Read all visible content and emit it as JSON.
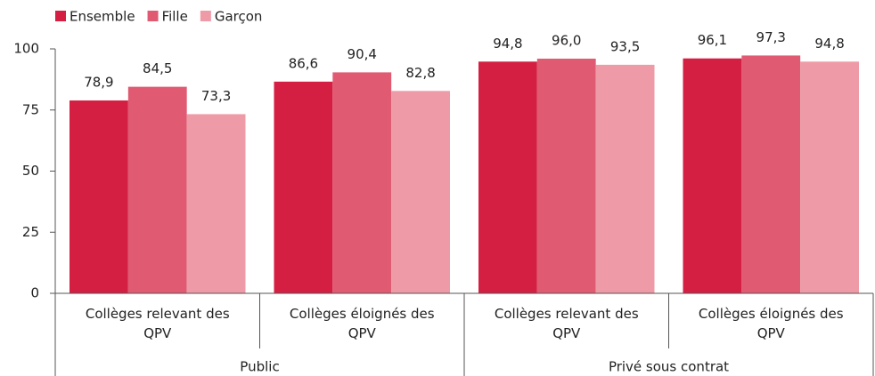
{
  "chart_data": {
    "type": "bar",
    "categories": [
      "Collèges relevant des QPV",
      "Collèges éloignés des QPV",
      "Collèges relevant des QPV",
      "Collèges éloignés des QPV"
    ],
    "group_labels": [
      "Public",
      "Privé sous contrat"
    ],
    "series": [
      {
        "name": "Ensemble",
        "color": "#d41f42",
        "values": [
          78.9,
          86.6,
          94.8,
          96.1
        ],
        "value_labels": [
          "78,9",
          "86,6",
          "94,8",
          "96,1"
        ]
      },
      {
        "name": "Fille",
        "color": "#e05a72",
        "values": [
          84.5,
          90.4,
          96.0,
          97.3
        ],
        "value_labels": [
          "84,5",
          "90,4",
          "96,0",
          "97,3"
        ]
      },
      {
        "name": "Garçon",
        "color": "#ee9ba7",
        "values": [
          73.3,
          82.8,
          93.5,
          94.8
        ],
        "value_labels": [
          "73,3",
          "82,8",
          "93,5",
          "94,8"
        ]
      }
    ],
    "ylim": [
      0,
      100
    ],
    "yticks": [
      0,
      25,
      50,
      75,
      100
    ],
    "grid": false,
    "legend": "top-left"
  }
}
